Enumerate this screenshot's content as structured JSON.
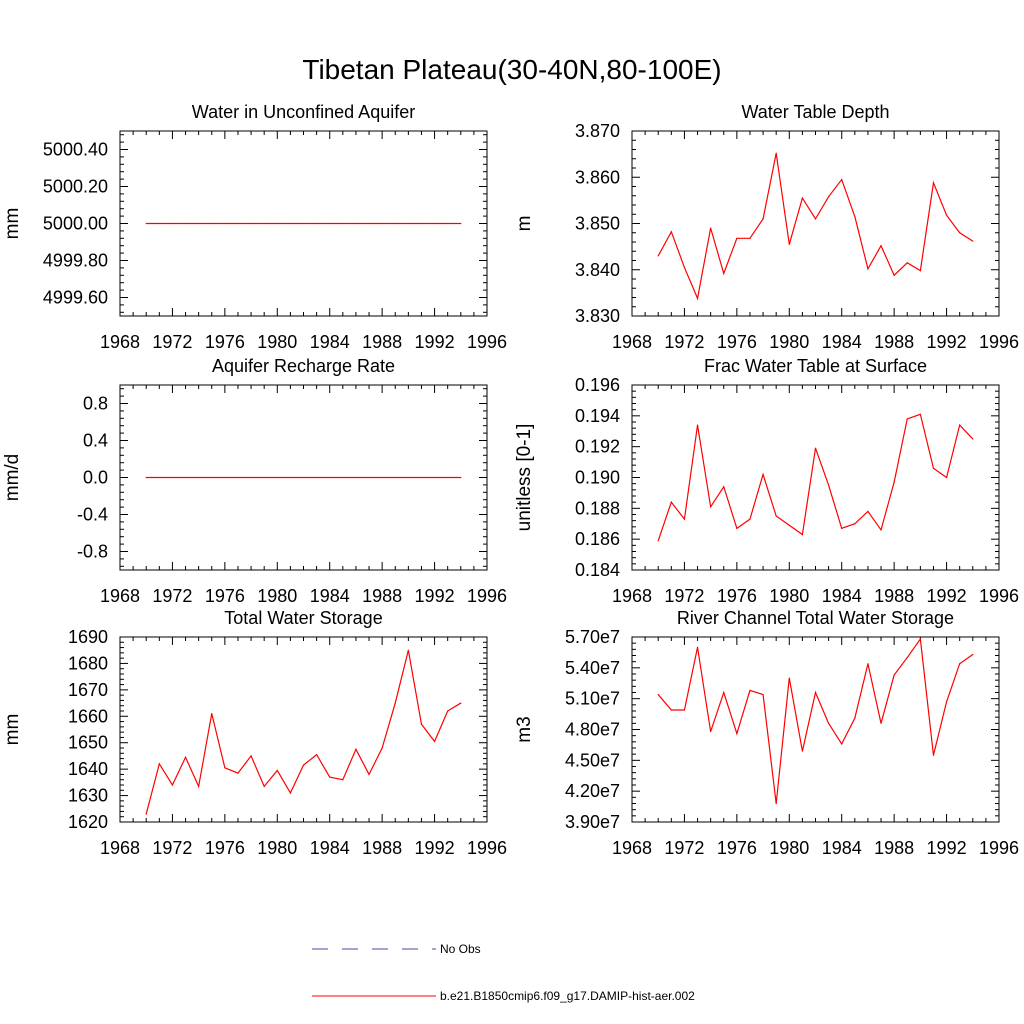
{
  "figure": {
    "title": "Tibetan Plateau(30-40N,80-100E)"
  },
  "colors": {
    "series_red": "#ff0000",
    "series_blue": "#4a4aa0",
    "axis": "#000000"
  },
  "chart_data": [
    {
      "id": "aquifer-water",
      "type": "line",
      "title": "Water in Unconfined Aquifer",
      "ylabel": "mm",
      "xlabel": "",
      "xlim": [
        1968,
        1996
      ],
      "ylim": [
        4999.5,
        5000.5
      ],
      "xticks": [
        1968,
        1972,
        1976,
        1980,
        1984,
        1988,
        1992,
        1996
      ],
      "yticks": [
        4999.6,
        4999.8,
        5000.0,
        5000.2,
        5000.4
      ],
      "ytick_labels": [
        "4999.60",
        "4999.80",
        "5000.00",
        "5000.20",
        "5000.40"
      ],
      "x": [
        1970,
        1971,
        1972,
        1973,
        1974,
        1975,
        1976,
        1977,
        1978,
        1979,
        1980,
        1981,
        1982,
        1983,
        1984,
        1985,
        1986,
        1987,
        1988,
        1989,
        1990,
        1991,
        1992,
        1993,
        1994
      ],
      "series": [
        {
          "values": [
            5000.0,
            5000.0,
            5000.0,
            5000.0,
            5000.0,
            5000.0,
            5000.0,
            5000.0,
            5000.0,
            5000.0,
            5000.0,
            5000.0,
            5000.0,
            5000.0,
            5000.0,
            5000.0,
            5000.0,
            5000.0,
            5000.0,
            5000.0,
            5000.0,
            5000.0,
            5000.0,
            5000.0,
            5000.0
          ]
        }
      ]
    },
    {
      "id": "water-table-depth",
      "type": "line",
      "title": "Water Table Depth",
      "ylabel": "m",
      "xlabel": "",
      "xlim": [
        1968,
        1996
      ],
      "ylim": [
        3.83,
        3.87
      ],
      "xticks": [
        1968,
        1972,
        1976,
        1980,
        1984,
        1988,
        1992,
        1996
      ],
      "yticks": [
        3.83,
        3.84,
        3.85,
        3.86,
        3.87
      ],
      "ytick_labels": [
        "3.830",
        "3.840",
        "3.850",
        "3.860",
        "3.870"
      ],
      "x": [
        1970,
        1971,
        1972,
        1973,
        1974,
        1975,
        1976,
        1977,
        1978,
        1979,
        1980,
        1981,
        1982,
        1983,
        1984,
        1985,
        1986,
        1987,
        1988,
        1989,
        1990,
        1991,
        1992,
        1993,
        1994
      ],
      "series": [
        {
          "values": [
            3.843,
            3.8482,
            3.8405,
            3.8338,
            3.849,
            3.8392,
            3.8468,
            3.8468,
            3.851,
            3.8652,
            3.8455,
            3.8555,
            3.851,
            3.8558,
            3.8595,
            3.8515,
            3.8402,
            3.8452,
            3.8388,
            3.8415,
            3.8398,
            3.8588,
            3.8518,
            3.848,
            3.8462
          ]
        }
      ]
    },
    {
      "id": "recharge-rate",
      "type": "line",
      "title": "Aquifer Recharge Rate",
      "ylabel": "mm/d",
      "xlabel": "",
      "xlim": [
        1968,
        1996
      ],
      "ylim": [
        -1.0,
        1.0
      ],
      "xticks": [
        1968,
        1972,
        1976,
        1980,
        1984,
        1988,
        1992,
        1996
      ],
      "yticks": [
        -0.8,
        -0.4,
        0.0,
        0.4,
        0.8
      ],
      "ytick_labels": [
        "-0.8",
        "-0.4",
        "0.0",
        "0.4",
        "0.8"
      ],
      "x": [
        1970,
        1971,
        1972,
        1973,
        1974,
        1975,
        1976,
        1977,
        1978,
        1979,
        1980,
        1981,
        1982,
        1983,
        1984,
        1985,
        1986,
        1987,
        1988,
        1989,
        1990,
        1991,
        1992,
        1993,
        1994
      ],
      "series": [
        {
          "values": [
            0,
            0,
            0,
            0,
            0,
            0,
            0,
            0,
            0,
            0,
            0,
            0,
            0,
            0,
            0,
            0,
            0,
            0,
            0,
            0,
            0,
            0,
            0,
            0,
            0
          ]
        }
      ]
    },
    {
      "id": "frac-water-table",
      "type": "line",
      "title": "Frac Water Table at Surface",
      "ylabel": "unitless [0-1]",
      "xlabel": "",
      "xlim": [
        1968,
        1996
      ],
      "ylim": [
        0.184,
        0.196
      ],
      "xticks": [
        1968,
        1972,
        1976,
        1980,
        1984,
        1988,
        1992,
        1996
      ],
      "yticks": [
        0.184,
        0.186,
        0.188,
        0.19,
        0.192,
        0.194,
        0.196
      ],
      "ytick_labels": [
        "0.184",
        "0.186",
        "0.188",
        "0.190",
        "0.192",
        "0.194",
        "0.196"
      ],
      "x": [
        1970,
        1971,
        1972,
        1973,
        1974,
        1975,
        1976,
        1977,
        1978,
        1979,
        1980,
        1981,
        1982,
        1983,
        1984,
        1985,
        1986,
        1987,
        1988,
        1989,
        1990,
        1991,
        1992,
        1993,
        1994
      ],
      "series": [
        {
          "values": [
            0.1859,
            0.1884,
            0.1873,
            0.1934,
            0.1881,
            0.1894,
            0.1867,
            0.1873,
            0.1902,
            0.1875,
            0.1869,
            0.1863,
            0.1919,
            0.1895,
            0.1867,
            0.187,
            0.1878,
            0.1866,
            0.1897,
            0.1938,
            0.1941,
            0.1906,
            0.19,
            0.1934,
            0.1925
          ]
        }
      ]
    },
    {
      "id": "total-water-storage",
      "type": "line",
      "title": "Total Water Storage",
      "ylabel": "mm",
      "xlabel": "",
      "xlim": [
        1968,
        1996
      ],
      "ylim": [
        1620,
        1690
      ],
      "xticks": [
        1968,
        1972,
        1976,
        1980,
        1984,
        1988,
        1992,
        1996
      ],
      "yticks": [
        1620,
        1630,
        1640,
        1650,
        1660,
        1670,
        1680,
        1690
      ],
      "ytick_labels": [
        "1620",
        "1630",
        "1640",
        "1650",
        "1660",
        "1670",
        "1680",
        "1690"
      ],
      "x": [
        1970,
        1971,
        1972,
        1973,
        1974,
        1975,
        1976,
        1977,
        1978,
        1979,
        1980,
        1981,
        1982,
        1983,
        1984,
        1985,
        1986,
        1987,
        1988,
        1989,
        1990,
        1991,
        1992,
        1993,
        1994
      ],
      "series": [
        {
          "values": [
            1623,
            1642,
            1634,
            1644.5,
            1633.5,
            1661,
            1640.5,
            1638.5,
            1645,
            1633.5,
            1639.5,
            1631,
            1641.5,
            1645.5,
            1637,
            1636,
            1647.5,
            1638,
            1648,
            1665,
            1685,
            1657,
            1650.5,
            1662,
            1665
          ]
        }
      ]
    },
    {
      "id": "river-channel-storage",
      "type": "line",
      "title": "River Channel Total Water Storage",
      "ylabel": "m3",
      "xlabel": "",
      "xlim": [
        1968,
        1996
      ],
      "ylim": [
        39000000,
        57000000
      ],
      "xticks": [
        1968,
        1972,
        1976,
        1980,
        1984,
        1988,
        1992,
        1996
      ],
      "yticks": [
        39000000,
        42000000,
        45000000,
        48000000,
        51000000,
        54000000,
        57000000
      ],
      "ytick_labels": [
        "3.90e7",
        "4.20e7",
        "4.50e7",
        "4.80e7",
        "5.10e7",
        "5.40e7",
        "5.70e7"
      ],
      "x": [
        1970,
        1971,
        1972,
        1973,
        1974,
        1975,
        1976,
        1977,
        1978,
        1979,
        1980,
        1981,
        1982,
        1983,
        1984,
        1985,
        1986,
        1987,
        1988,
        1989,
        1990,
        1991,
        1992,
        1993,
        1994
      ],
      "series": [
        {
          "values": [
            51400000,
            49900000,
            49900000,
            56000000,
            47800000,
            51600000,
            47600000,
            51800000,
            51400000,
            40800000,
            53000000,
            45900000,
            51600000,
            48600000,
            46600000,
            49100000,
            54400000,
            48600000,
            53300000,
            55000000,
            56800000,
            45500000,
            50700000,
            54400000,
            55300000
          ]
        }
      ]
    }
  ],
  "legend": {
    "entries": [
      {
        "label": "No Obs",
        "style": "dashed"
      },
      {
        "label": "b.e21.B1850cmip6.f09_g17.DAMIP-hist-aer.002",
        "style": "solid"
      }
    ]
  }
}
